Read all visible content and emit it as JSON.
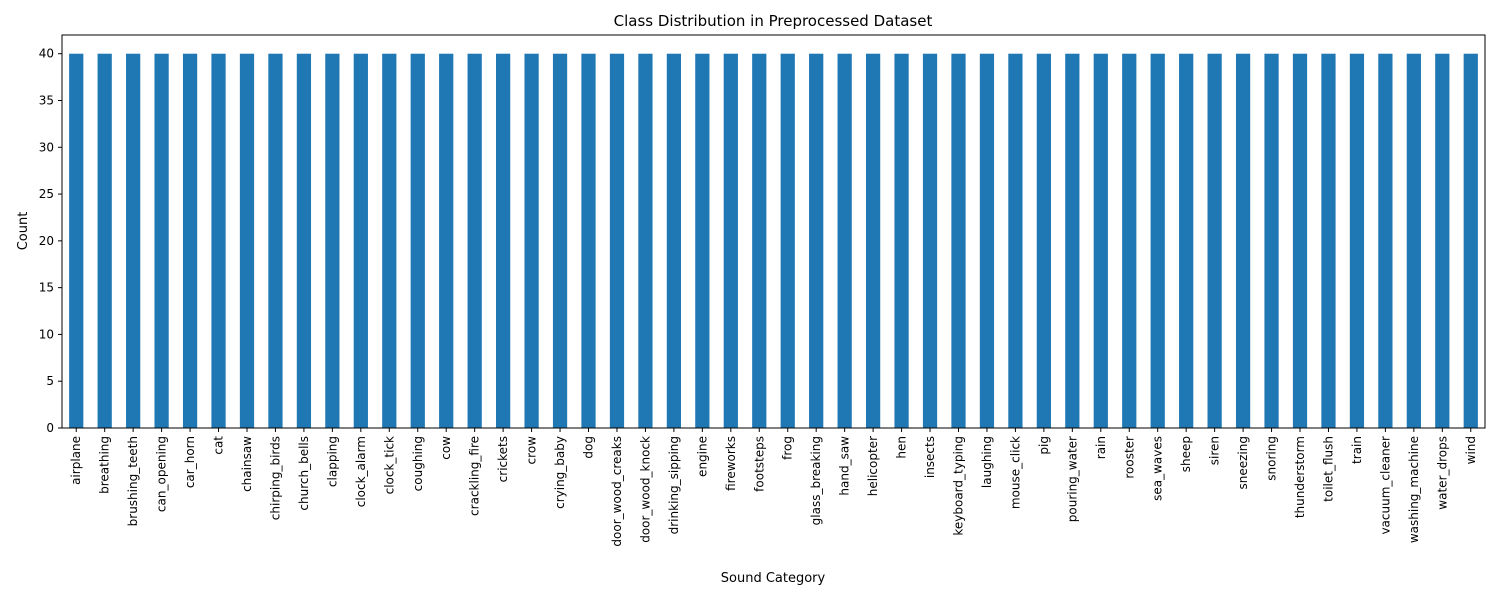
{
  "chart_data": {
    "type": "bar",
    "title": "Class Distribution in Preprocessed Dataset",
    "xlabel": "Sound Category",
    "ylabel": "Count",
    "ylim": [
      0,
      42
    ],
    "yticks": [
      0,
      5,
      10,
      15,
      20,
      25,
      30,
      35,
      40
    ],
    "grid": false,
    "bar_color": "#1f77b4",
    "categories": [
      "airplane",
      "breathing",
      "brushing_teeth",
      "can_opening",
      "car_horn",
      "cat",
      "chainsaw",
      "chirping_birds",
      "church_bells",
      "clapping",
      "clock_alarm",
      "clock_tick",
      "coughing",
      "cow",
      "crackling_fire",
      "crickets",
      "crow",
      "crying_baby",
      "dog",
      "door_wood_creaks",
      "door_wood_knock",
      "drinking_sipping",
      "engine",
      "fireworks",
      "footsteps",
      "frog",
      "glass_breaking",
      "hand_saw",
      "helicopter",
      "hen",
      "insects",
      "keyboard_typing",
      "laughing",
      "mouse_click",
      "pig",
      "pouring_water",
      "rain",
      "rooster",
      "sea_waves",
      "sheep",
      "siren",
      "sneezing",
      "snoring",
      "thunderstorm",
      "toilet_flush",
      "train",
      "vacuum_cleaner",
      "washing_machine",
      "water_drops",
      "wind"
    ],
    "values": [
      40,
      40,
      40,
      40,
      40,
      40,
      40,
      40,
      40,
      40,
      40,
      40,
      40,
      40,
      40,
      40,
      40,
      40,
      40,
      40,
      40,
      40,
      40,
      40,
      40,
      40,
      40,
      40,
      40,
      40,
      40,
      40,
      40,
      40,
      40,
      40,
      40,
      40,
      40,
      40,
      40,
      40,
      40,
      40,
      40,
      40,
      40,
      40,
      40,
      40
    ]
  }
}
